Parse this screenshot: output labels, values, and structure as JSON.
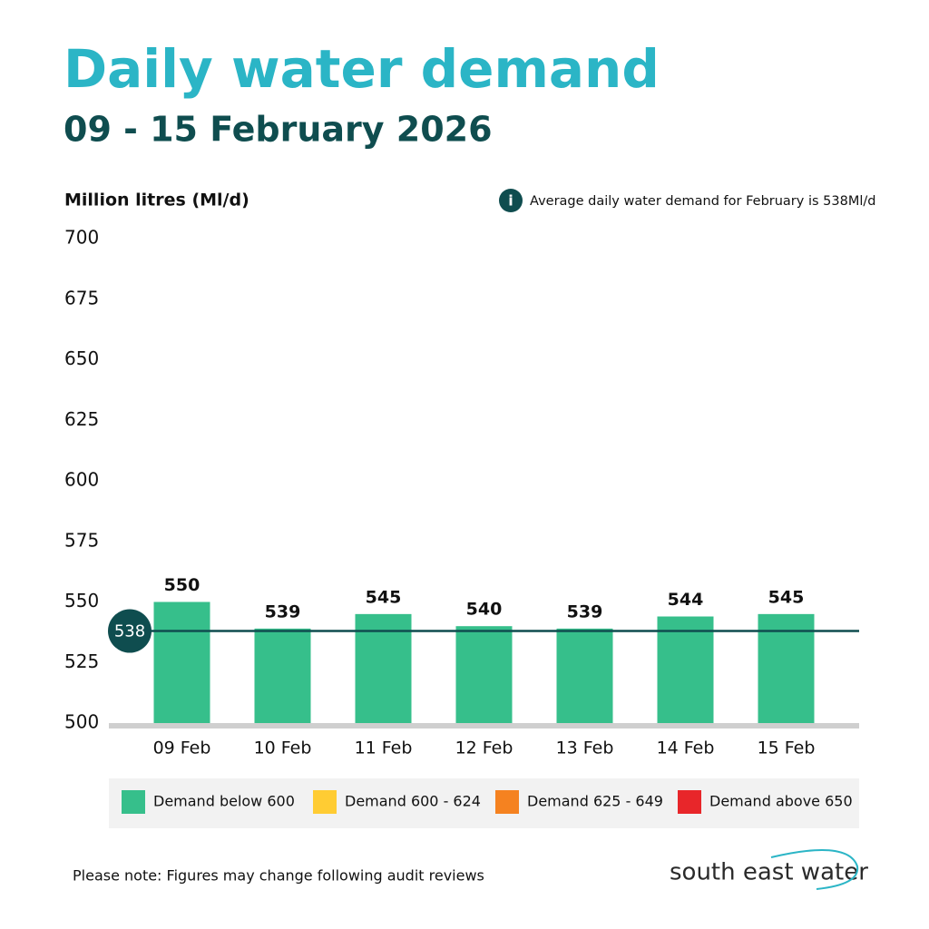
{
  "chart_data": {
    "type": "bar",
    "title": "Daily water demand",
    "subtitle": "09 - 15 February 2026",
    "y_axis_label": "Million litres (Ml/d)",
    "annotation": "Average daily water demand for February  is 538Ml/d",
    "categories": [
      "09 Feb",
      "10 Feb",
      "11 Feb",
      "12 Feb",
      "13 Feb",
      "14 Feb",
      "15 Feb"
    ],
    "values": [
      550,
      539,
      545,
      540,
      539,
      544,
      545
    ],
    "color": "#36bf8b",
    "reference_line": 538,
    "ylim": [
      500,
      700
    ],
    "yticks": [
      500,
      525,
      550,
      575,
      600,
      625,
      650,
      675,
      700
    ],
    "grid": false,
    "legend": [
      {
        "label": "Demand below 600",
        "color": "#36bf8b"
      },
      {
        "label": "Demand 600 - 624",
        "color": "#ffcc33"
      },
      {
        "label": "Demand 625 - 649",
        "color": "#f58220"
      },
      {
        "label": "Demand above 650",
        "color": "#e8262a"
      }
    ]
  },
  "footer": {
    "note": "Please note: Figures may change following audit reviews",
    "logo": "south east water"
  }
}
